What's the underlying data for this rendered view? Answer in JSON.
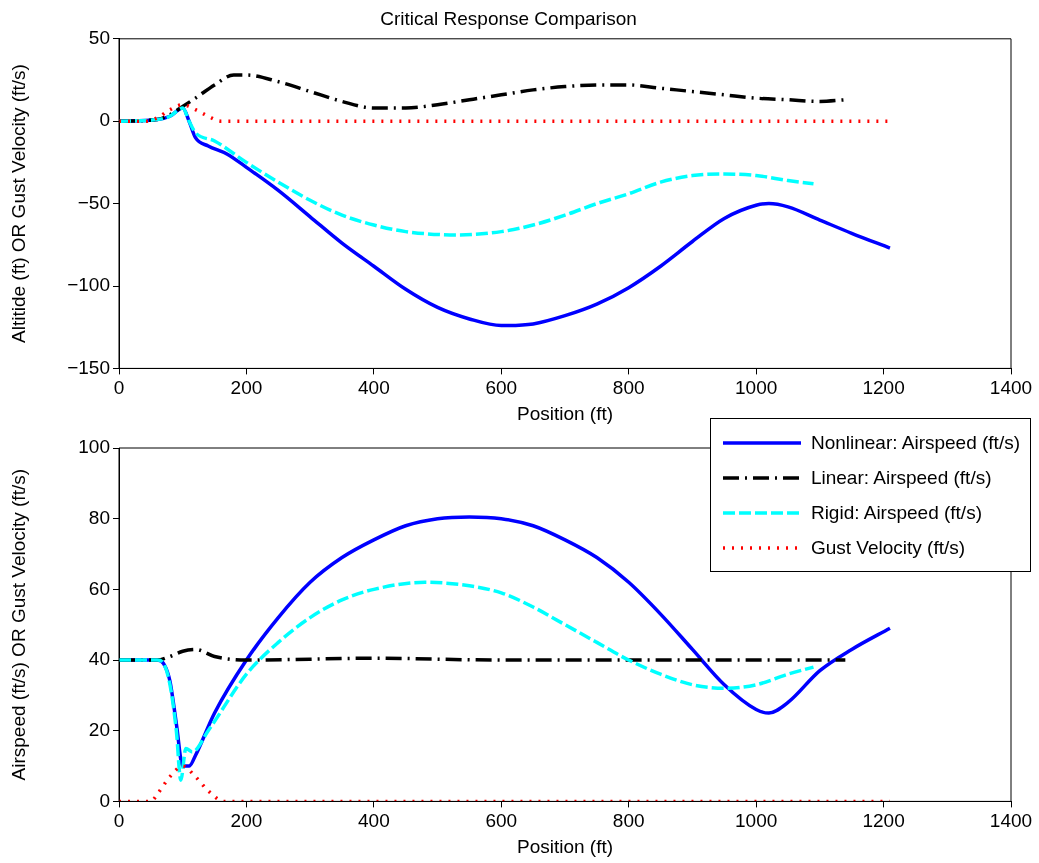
{
  "chart_data": [
    {
      "type": "line",
      "title": "Critical Response Comparison",
      "xlabel": "Position (ft)",
      "ylabel": "Altitide (ft) OR Gust Velocity (ft/s)",
      "xlim": [
        0,
        1400
      ],
      "xticks": [
        0,
        200,
        400,
        600,
        800,
        1000,
        1200,
        1400
      ],
      "ylim": [
        -150,
        50
      ],
      "yticks": [
        -150,
        -100,
        -50,
        0,
        50
      ],
      "grid": false,
      "legend": false,
      "marker": "none",
      "series": [
        {
          "color": "#0000ff",
          "line_style": "solid",
          "x": [
            0,
            60,
            80,
            100,
            110,
            120,
            140,
            170,
            200,
            250,
            300,
            350,
            400,
            450,
            500,
            550,
            600,
            650,
            700,
            750,
            800,
            850,
            900,
            950,
            1000,
            1020,
            1050,
            1100,
            1150,
            1210
          ],
          "values": [
            0,
            1,
            3,
            8,
            0,
            -10,
            -15,
            -20,
            -28,
            -42,
            -58,
            -74,
            -88,
            -102,
            -113,
            -120,
            -124,
            -123,
            -118,
            -111,
            -101,
            -88,
            -73,
            -59,
            -51,
            -50,
            -52,
            -60,
            -68,
            -77
          ]
        },
        {
          "color": "#000000",
          "line_style": "dashdot",
          "x": [
            0,
            60,
            80,
            100,
            120,
            150,
            180,
            200,
            250,
            300,
            350,
            400,
            450,
            500,
            550,
            600,
            650,
            700,
            760,
            800,
            850,
            900,
            950,
            1000,
            1050,
            1100,
            1140
          ],
          "values": [
            0,
            1,
            4,
            9,
            14,
            22,
            28,
            28,
            24,
            18,
            12,
            8,
            8,
            10,
            13,
            16,
            19,
            21,
            22,
            22,
            20,
            18,
            16,
            14,
            13,
            12,
            13
          ]
        },
        {
          "color": "#00ffff",
          "line_style": "dashed",
          "x": [
            0,
            60,
            80,
            100,
            110,
            120,
            150,
            200,
            250,
            300,
            350,
            400,
            450,
            530,
            600,
            650,
            700,
            750,
            800,
            850,
            900,
            950,
            1000,
            1050,
            1090
          ],
          "values": [
            0,
            1,
            3,
            8,
            0,
            -7,
            -12,
            -25,
            -37,
            -48,
            -57,
            -63,
            -67,
            -69,
            -67,
            -63,
            -57,
            -50,
            -44,
            -37,
            -33,
            -32,
            -33,
            -36,
            -38
          ]
        },
        {
          "color": "#ff0000",
          "line_style": "dotted",
          "x": [
            0,
            40,
            60,
            80,
            100,
            120,
            140,
            160,
            1210
          ],
          "values": [
            0,
            0,
            2,
            7,
            10,
            7,
            3,
            0,
            0
          ]
        }
      ]
    },
    {
      "type": "line",
      "xlabel": "Position (ft)",
      "ylabel": "Airspeed (ft/s) OR Gust Velocity (ft/s)",
      "xlim": [
        0,
        1400
      ],
      "xticks": [
        0,
        200,
        400,
        600,
        800,
        1000,
        1200,
        1400
      ],
      "ylim": [
        0,
        100
      ],
      "yticks": [
        0,
        20,
        40,
        60,
        80,
        100
      ],
      "grid": false,
      "legend": "top right",
      "marker": "none",
      "series": [
        {
          "name": "Nonlinear: Airspeed (ft/s)",
          "color": "#0000ff",
          "line_style": "solid",
          "x": [
            0,
            60,
            70,
            80,
            90,
            100,
            110,
            120,
            150,
            200,
            250,
            300,
            350,
            400,
            450,
            500,
            550,
            600,
            650,
            700,
            750,
            800,
            850,
            900,
            950,
            1000,
            1020,
            1050,
            1100,
            1150,
            1210
          ],
          "values": [
            40,
            40,
            39,
            34,
            22,
            10,
            10,
            13,
            25,
            40,
            52,
            62,
            69,
            74,
            78,
            80,
            80.5,
            80,
            78,
            74,
            69,
            62,
            53,
            43,
            33,
            26,
            25,
            28,
            37,
            43,
            49
          ]
        },
        {
          "name": "Linear: Airspeed (ft/s)",
          "color": "#000000",
          "line_style": "dashdot",
          "x": [
            0,
            60,
            80,
            100,
            120,
            150,
            200,
            400,
            600,
            800,
            1000,
            1140
          ],
          "values": [
            40,
            40,
            41,
            42.5,
            43,
            41,
            40,
            40.5,
            40,
            40,
            40,
            40
          ]
        },
        {
          "name": "Rigid: Airspeed (ft/s)",
          "color": "#00ffff",
          "line_style": "dashed",
          "x": [
            0,
            60,
            70,
            80,
            90,
            97,
            105,
            115,
            140,
            200,
            250,
            300,
            350,
            400,
            480,
            550,
            600,
            650,
            700,
            750,
            800,
            850,
            900,
            950,
            1000,
            1050,
            1090
          ],
          "values": [
            40,
            40,
            39,
            33,
            20,
            6,
            15,
            14,
            20,
            36,
            45,
            52,
            57,
            60,
            62,
            61,
            59,
            55,
            50,
            45,
            40,
            36,
            33,
            32,
            33,
            36,
            38
          ]
        },
        {
          "name": "Gust Velocity (ft/s)",
          "color": "#ff0000",
          "line_style": "dotted",
          "x": [
            0,
            50,
            60,
            80,
            100,
            120,
            140,
            165,
            1210
          ],
          "values": [
            0,
            0,
            2,
            7,
            10,
            7,
            3,
            0,
            0
          ]
        }
      ]
    }
  ]
}
